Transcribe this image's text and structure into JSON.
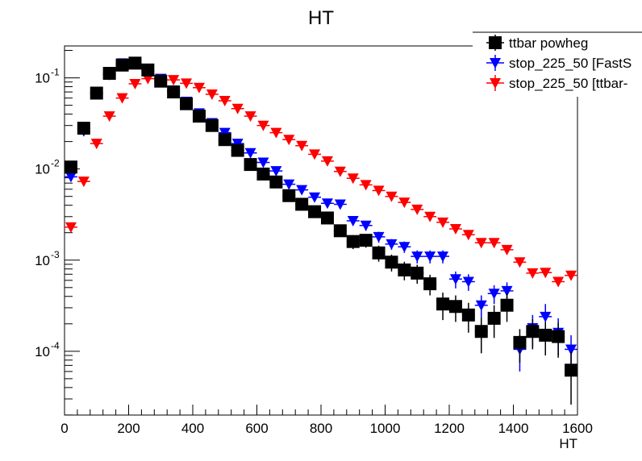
{
  "chart_data": {
    "type": "scatter",
    "title": "HT",
    "xlabel": "HT",
    "ylabel": "",
    "xlim": [
      0,
      1600
    ],
    "ylim_log10": [
      -4.7,
      -0.65
    ],
    "log_y": true,
    "grid": false,
    "legend_position": "top-right",
    "x_tick_labels": [
      "0",
      "200",
      "400",
      "600",
      "800",
      "1000",
      "1200",
      "1400",
      "1600"
    ],
    "y_tick_labels": [
      {
        "base": "10",
        "exp": "-4"
      },
      {
        "base": "10",
        "exp": "-3"
      },
      {
        "base": "10",
        "exp": "-2"
      },
      {
        "base": "10",
        "exp": "-1"
      }
    ],
    "bin_width": 40,
    "x": [
      20,
      60,
      100,
      140,
      180,
      220,
      260,
      300,
      340,
      380,
      420,
      460,
      500,
      540,
      580,
      620,
      660,
      700,
      740,
      780,
      820,
      860,
      900,
      940,
      980,
      1020,
      1060,
      1100,
      1140,
      1180,
      1220,
      1260,
      1300,
      1340,
      1380,
      1420,
      1460,
      1500,
      1540,
      1580
    ],
    "series": [
      {
        "name": "ttbar powheg",
        "color": "#000000",
        "marker": "square",
        "y": [
          0.0105,
          0.028,
          0.068,
          0.112,
          0.138,
          0.145,
          0.122,
          0.092,
          0.07,
          0.052,
          0.038,
          0.03,
          0.021,
          0.016,
          0.0112,
          0.0088,
          0.0072,
          0.0051,
          0.0041,
          0.0034,
          0.0029,
          0.0021,
          0.0016,
          0.00165,
          0.0012,
          0.00095,
          0.00078,
          0.00072,
          0.00055,
          0.00033,
          0.00031,
          0.00025,
          0.000165,
          0.00023,
          0.00032,
          0.000125,
          0.000165,
          0.00015,
          0.000145,
          6.2e-05
        ],
        "err": [
          0.001,
          0.003,
          0.005,
          0.006,
          0.007,
          0.007,
          0.006,
          0.005,
          0.004,
          0.003,
          0.002,
          0.002,
          0.0015,
          0.0012,
          0.0009,
          0.0008,
          0.0007,
          0.0006,
          0.0005,
          0.0004,
          0.0004,
          0.0003,
          0.00028,
          0.00028,
          0.00024,
          0.0002,
          0.00018,
          0.00017,
          0.00014,
          0.00011,
          0.0001,
          9e-05,
          7e-05,
          9e-05,
          0.00011,
          5e-05,
          6e-05,
          6e-05,
          6e-05,
          3.6e-05
        ]
      },
      {
        "name": "stop_225_50 [FastS",
        "color": "#0000ff",
        "marker": "triangle-down",
        "y": [
          0.0082,
          0.026,
          0.067,
          0.108,
          0.145,
          0.15,
          0.118,
          0.098,
          0.073,
          0.055,
          0.041,
          0.032,
          0.025,
          0.019,
          0.015,
          0.0118,
          0.0095,
          0.0068,
          0.0059,
          0.0049,
          0.0042,
          0.0041,
          0.0027,
          0.0024,
          0.0018,
          0.0015,
          0.0014,
          0.0011,
          0.0011,
          0.0011,
          0.00062,
          0.00058,
          0.00032,
          0.00043,
          0.00046,
          0.000105,
          0.00018,
          0.00024,
          0.00016,
          0.000105
        ],
        "err": [
          0.0008,
          0.002,
          0.004,
          0.005,
          0.006,
          0.006,
          0.005,
          0.004,
          0.003,
          0.002,
          0.002,
          0.0015,
          0.0012,
          0.001,
          0.0008,
          0.0007,
          0.0006,
          0.0005,
          0.0005,
          0.0004,
          0.0004,
          0.0004,
          0.0003,
          0.0003,
          0.00025,
          0.0002,
          0.0002,
          0.00018,
          0.00018,
          0.00018,
          0.00013,
          0.00012,
          9e-05,
          0.0001,
          0.00011,
          4.5e-05,
          7e-05,
          9e-05,
          7e-05,
          4.5e-05
        ]
      },
      {
        "name": "stop_225_50 [ttbar-",
        "color": "#ff0000",
        "marker": "triangle-down",
        "y": [
          0.0023,
          0.0073,
          0.019,
          0.038,
          0.06,
          0.086,
          0.098,
          0.098,
          0.095,
          0.087,
          0.078,
          0.066,
          0.056,
          0.046,
          0.038,
          0.03,
          0.025,
          0.021,
          0.018,
          0.0145,
          0.0122,
          0.0094,
          0.0079,
          0.0067,
          0.0058,
          0.005,
          0.0043,
          0.0036,
          0.003,
          0.0026,
          0.0022,
          0.0019,
          0.00155,
          0.00155,
          0.0013,
          0.00095,
          0.00072,
          0.00073,
          0.00058,
          0.00068
        ],
        "err": [
          0.00012,
          0.0002,
          0.0003,
          0.0005,
          0.0006,
          0.0007,
          0.0008,
          0.0008,
          0.0008,
          0.0007,
          0.0007,
          0.0006,
          0.0005,
          0.0005,
          0.0004,
          0.0004,
          0.0003,
          0.0003,
          0.0003,
          0.0002,
          0.0002,
          0.0002,
          0.0002,
          0.00015,
          0.00015,
          0.00013,
          0.00012,
          0.0001,
          0.0001,
          0.0001,
          9e-05,
          8e-05,
          8e-05,
          8e-05,
          7e-05,
          6e-05,
          5e-05,
          5e-05,
          5e-05,
          5e-05
        ]
      }
    ]
  }
}
